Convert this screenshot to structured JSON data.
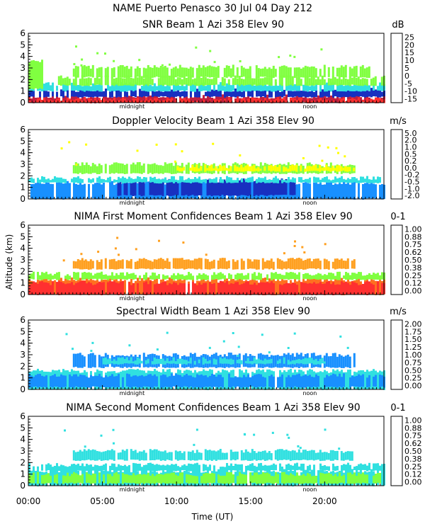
{
  "figure": {
    "title": "NAME Puerto Penasco   30 Jul 04 Day 212",
    "ylabel": "Altitude (km)",
    "xlabel": "Time (UT)",
    "x_ticks": [
      "00:00",
      "05:00",
      "10:00",
      "15:00",
      "20:00"
    ],
    "markers": {
      "midnight": "midnight",
      "noon": "noon"
    }
  },
  "chart_data": [
    {
      "type": "heatmap",
      "title": "SNR Beam 1 Azi 358 Elev 90",
      "unit": "dB",
      "ylim": [
        0,
        6
      ],
      "xlim_hours": [
        0,
        24
      ],
      "y_ticks": [
        "0",
        "1",
        "2",
        "3",
        "4",
        "5",
        "6"
      ],
      "colorbar_labels": [
        "25",
        "20",
        "15",
        "10",
        "5",
        "0",
        "-5",
        "-10",
        "-15"
      ],
      "colorbar_colors": [
        "#ffa020",
        "#ffcc00",
        "#ff3030",
        "#c01040",
        "#501060",
        "#1818a0",
        "#1890ff",
        "#30e0e0",
        "#80ff40"
      ],
      "layers": [
        {
          "from": 0,
          "to": 24,
          "y0": 0,
          "y1": 0.55,
          "color": "#c02040"
        },
        {
          "from": 0,
          "to": 24,
          "y0": 0,
          "y1": 0.3,
          "color": "#ff3030"
        },
        {
          "from": 0,
          "to": 24,
          "y0": 0.5,
          "y1": 1.1,
          "color": "#1830c0"
        },
        {
          "from": 0,
          "to": 24,
          "y0": 1.0,
          "y1": 1.6,
          "color": "#30e0e0"
        },
        {
          "from": 2,
          "to": 24,
          "y0": 1.5,
          "y1": 2.2,
          "color": "#80ff40"
        },
        {
          "from": 3,
          "to": 23,
          "y0": 2.2,
          "y1": 3.1,
          "color": "#80ff40"
        },
        {
          "from": 0,
          "to": 1,
          "y0": 1.2,
          "y1": 3.6,
          "color": "#80ff40"
        }
      ]
    },
    {
      "type": "heatmap",
      "title": "Doppler Velocity Beam 1 Azi 358 Elev 90",
      "unit": "m/s",
      "ylim": [
        0,
        6
      ],
      "xlim_hours": [
        0,
        24
      ],
      "y_ticks": [
        "0",
        "1",
        "2",
        "3",
        "4",
        "5",
        "6"
      ],
      "colorbar_labels": [
        "5.0",
        "2.0",
        "1.0",
        "0.5",
        "0.2",
        "0.0",
        "-0.2",
        "-0.5",
        "-1.0",
        "-2.0"
      ],
      "colorbar_colors": [
        "#501060",
        "#1818a0",
        "#1860e0",
        "#1890ff",
        "#30e0e0",
        "#40ff80",
        "#80ff40",
        "#ffff00",
        "#ffa020",
        "#ff3030"
      ],
      "layers": [
        {
          "from": 0,
          "to": 24,
          "y0": 0,
          "y1": 1.4,
          "color": "#1890ff"
        },
        {
          "from": 6,
          "to": 18,
          "y0": 0.3,
          "y1": 1.6,
          "color": "#1830c0"
        },
        {
          "from": 0,
          "to": 24,
          "y0": 1.4,
          "y1": 1.8,
          "color": "#30e0e0"
        },
        {
          "from": 3,
          "to": 22,
          "y0": 2.2,
          "y1": 3.0,
          "color": "#80ff40"
        },
        {
          "from": 10,
          "to": 22,
          "y0": 2.4,
          "y1": 2.8,
          "color": "#ffff00"
        }
      ]
    },
    {
      "type": "heatmap",
      "title": "NIMA First Moment Confidences Beam 1 Azi 358 Elev 90",
      "unit": "0-1",
      "ylim": [
        0,
        6
      ],
      "xlim_hours": [
        0,
        24
      ],
      "y_ticks": [
        "0",
        "1",
        "2",
        "3",
        "4",
        "5",
        "6"
      ],
      "colorbar_labels": [
        "1.00",
        "0.88",
        "0.75",
        "0.62",
        "0.50",
        "0.38",
        "0.25",
        "0.12",
        "0.00"
      ],
      "colorbar_colors": [
        "#ff3030",
        "#ff7020",
        "#ffa020",
        "#ffff00",
        "#80ff40",
        "#30e0e0",
        "#1890ff",
        "#1830c0",
        "#501060"
      ],
      "layers": [
        {
          "from": 0,
          "to": 24,
          "y0": 0,
          "y1": 1.3,
          "color": "#ff7020"
        },
        {
          "from": 0,
          "to": 24,
          "y0": 0,
          "y1": 1.0,
          "color": "#ff3030"
        },
        {
          "from": 0,
          "to": 24,
          "y0": 1.3,
          "y1": 1.8,
          "color": "#80ff40"
        },
        {
          "from": 3,
          "to": 22,
          "y0": 2.2,
          "y1": 3.0,
          "color": "#ffa020"
        }
      ]
    },
    {
      "type": "heatmap",
      "title": "Spectral Width Beam 1 Azi 358 Elev 90",
      "unit": "m/s",
      "ylim": [
        0,
        6
      ],
      "xlim_hours": [
        0,
        24
      ],
      "y_ticks": [
        "0",
        "1",
        "2",
        "3",
        "4",
        "5",
        "6"
      ],
      "colorbar_labels": [
        "2.00",
        "1.75",
        "1.50",
        "1.25",
        "1.00",
        "0.75",
        "0.50",
        "0.25",
        "0.00"
      ],
      "colorbar_colors": [
        "#ff3030",
        "#ff7020",
        "#ffa020",
        "#ffff00",
        "#80ff40",
        "#30e0e0",
        "#1890ff",
        "#1830c0",
        "#501060"
      ],
      "layers": [
        {
          "from": 0,
          "to": 24,
          "y0": 0,
          "y1": 1.6,
          "color": "#30e0e0"
        },
        {
          "from": 0,
          "to": 24,
          "y0": 0.2,
          "y1": 1.2,
          "color": "#1890ff"
        },
        {
          "from": 3,
          "to": 22,
          "y0": 1.9,
          "y1": 3.0,
          "color": "#1890ff"
        },
        {
          "from": 5,
          "to": 20,
          "y0": 2.2,
          "y1": 2.6,
          "color": "#30e0e0"
        }
      ]
    },
    {
      "type": "heatmap",
      "title": "NIMA Second Moment Confidences Beam 1 Azi 358 Elev 90",
      "unit": "0-1",
      "ylim": [
        0,
        6
      ],
      "xlim_hours": [
        0,
        24
      ],
      "y_ticks": [
        "0",
        "1",
        "2",
        "3",
        "4",
        "5",
        "6"
      ],
      "colorbar_labels": [
        "1.00",
        "0.88",
        "0.75",
        "0.62",
        "0.50",
        "0.38",
        "0.25",
        "0.12",
        "0.00"
      ],
      "colorbar_colors": [
        "#ff3030",
        "#ff7020",
        "#ffa020",
        "#ffff00",
        "#80ff40",
        "#30e0e0",
        "#1890ff",
        "#1830c0",
        "#501060"
      ],
      "layers": [
        {
          "from": 0,
          "to": 24,
          "y0": 0,
          "y1": 1.3,
          "color": "#30e0e0"
        },
        {
          "from": 0,
          "to": 24,
          "y0": 0.2,
          "y1": 1.0,
          "color": "#80ff40"
        },
        {
          "from": 0,
          "to": 24,
          "y0": 1.3,
          "y1": 1.8,
          "color": "#30e0e0"
        },
        {
          "from": 3,
          "to": 22,
          "y0": 2.2,
          "y1": 3.0,
          "color": "#30e0e0"
        }
      ]
    }
  ]
}
